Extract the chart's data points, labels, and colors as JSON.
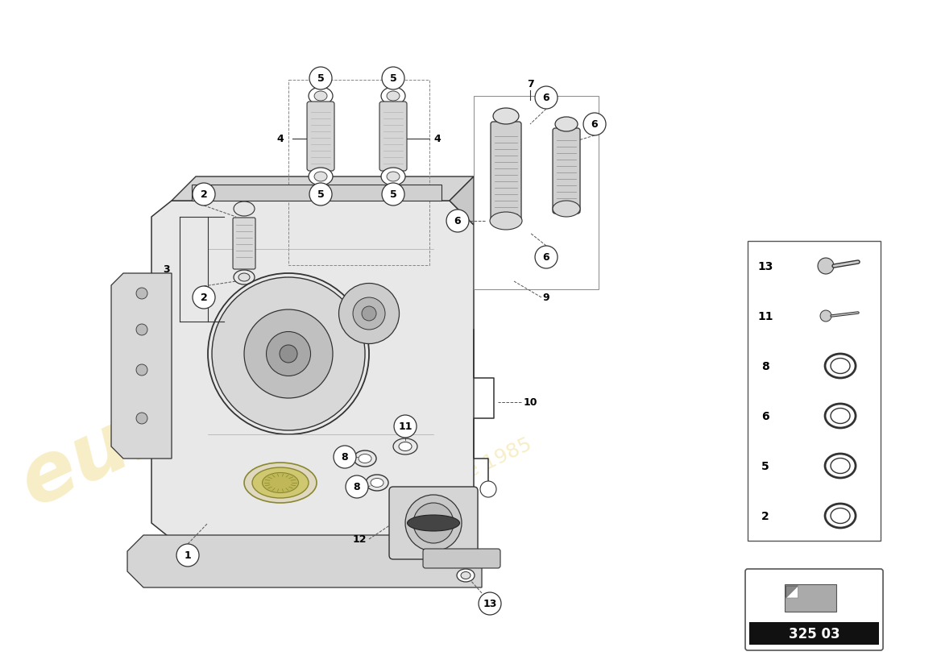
{
  "bg_color": "#ffffff",
  "fig_width": 11.0,
  "fig_height": 8.0,
  "box_code": "325 03",
  "watermark1": "eurofores",
  "watermark2": "a passionate parts since 1985"
}
